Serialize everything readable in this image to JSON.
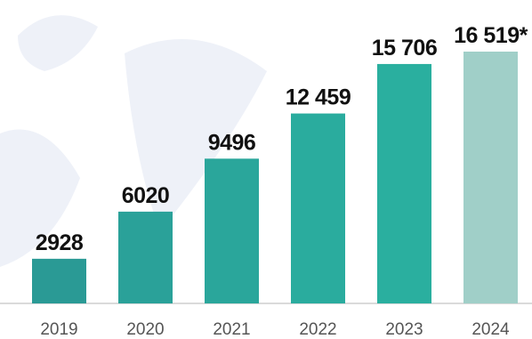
{
  "chart_data": {
    "type": "bar",
    "categories": [
      "2019",
      "2020",
      "2021",
      "2022",
      "2023",
      "2024"
    ],
    "values": [
      2928,
      6020,
      9496,
      12459,
      15706,
      16519
    ],
    "value_labels": [
      "2928",
      "6020",
      "9496",
      "12 459",
      "15 706",
      "16 519*"
    ],
    "colors": [
      "#2a9a95",
      "#2aa199",
      "#2aa69b",
      "#2aac9e",
      "#2aaf9f",
      "#a0cfc8"
    ]
  }
}
